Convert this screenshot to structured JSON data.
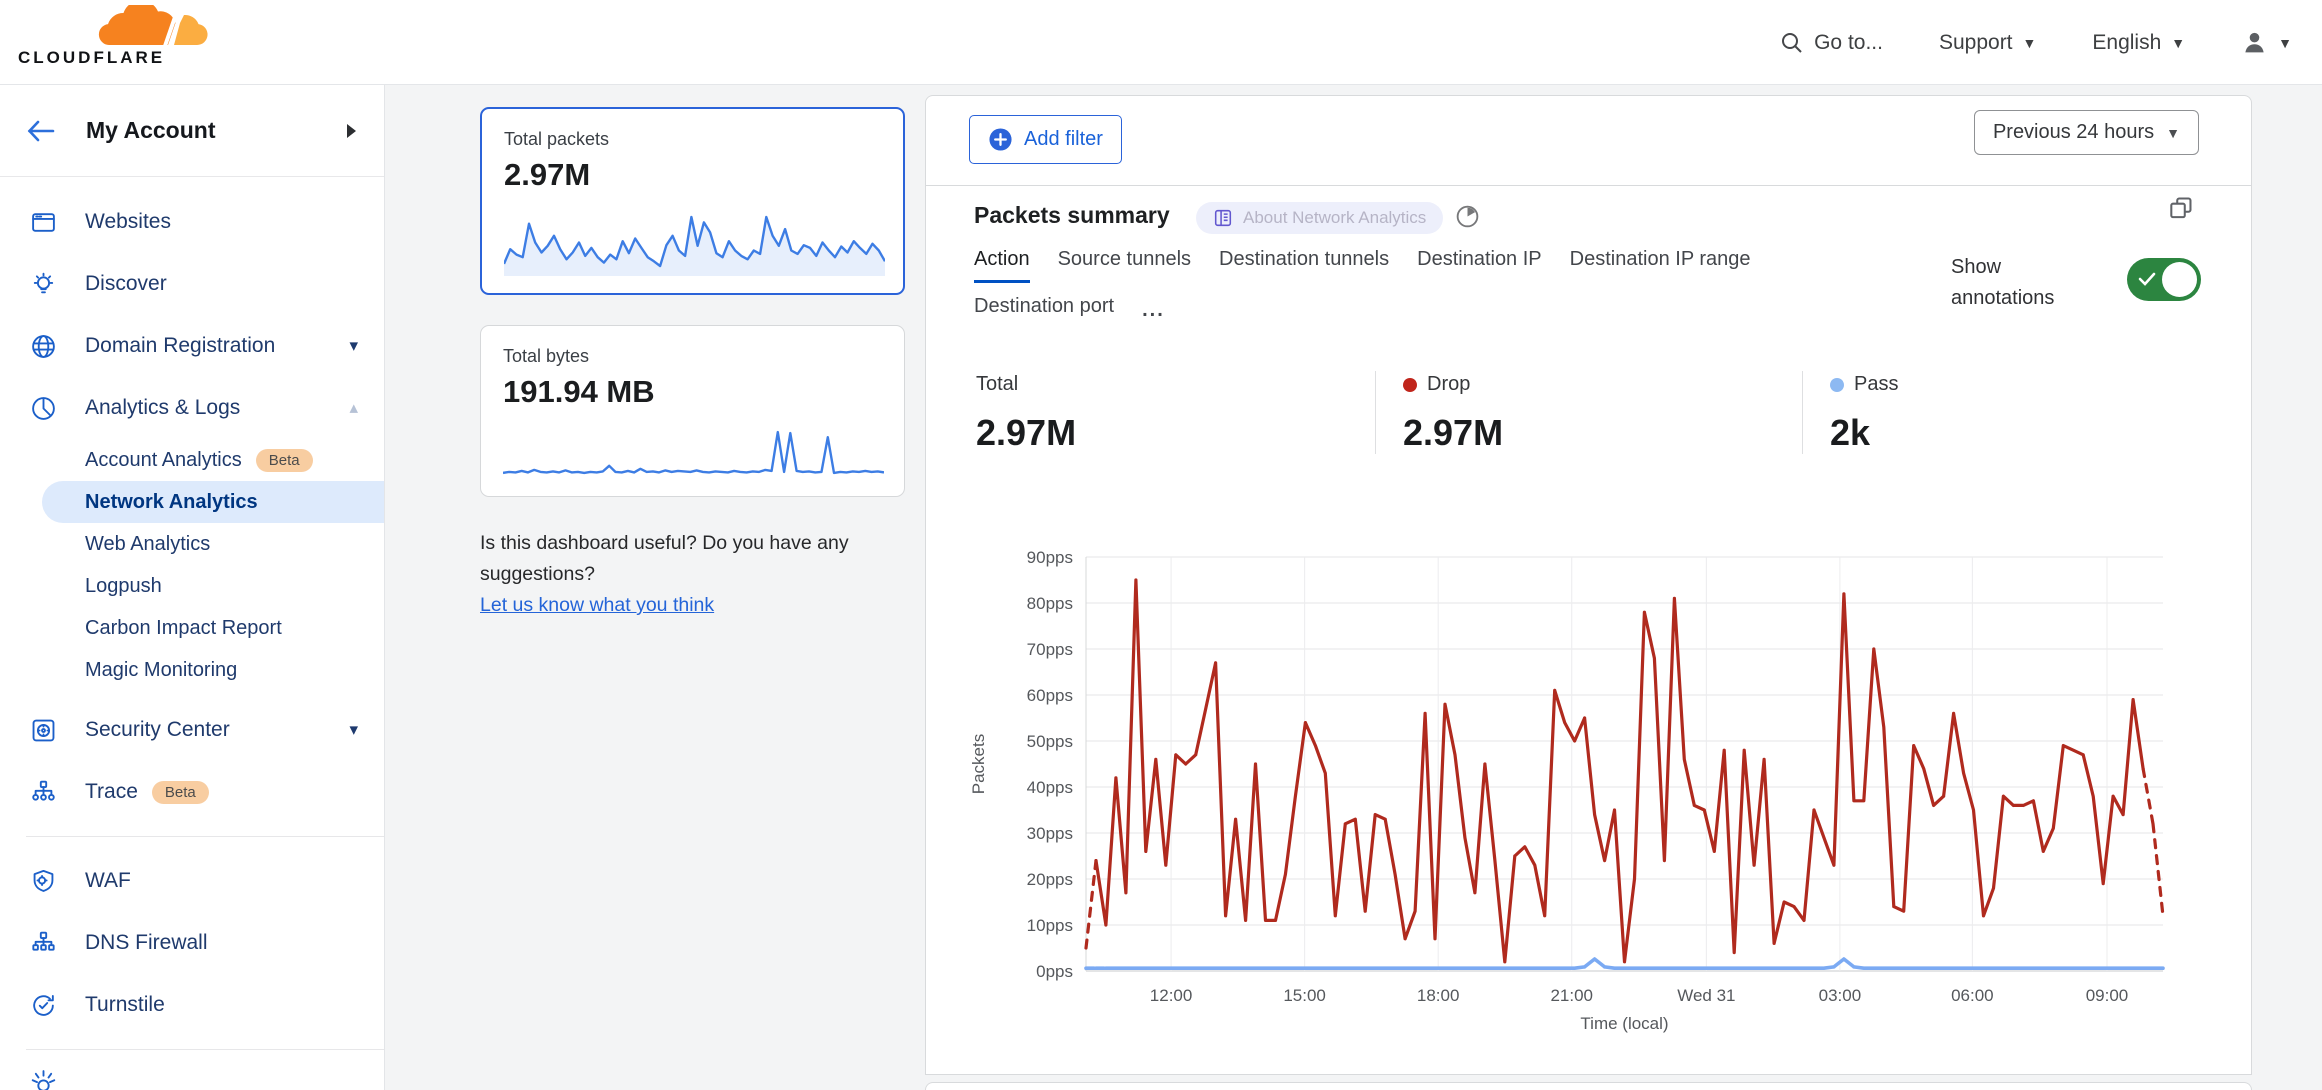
{
  "header": {
    "logo_text": "CLOUDFLARE",
    "goto": "Go to...",
    "support": "Support",
    "language": "English"
  },
  "sidebar": {
    "account_label": "My Account",
    "items": [
      {
        "icon": "websites-icon",
        "label": "Websites"
      },
      {
        "icon": "discover-icon",
        "label": "Discover"
      },
      {
        "icon": "globe-icon",
        "label": "Domain Registration",
        "caret": "down"
      },
      {
        "icon": "analytics-icon",
        "label": "Analytics & Logs",
        "caret": "up"
      },
      {
        "label": "Account Analytics",
        "badge": "Beta",
        "indent": true
      },
      {
        "label": "Network Analytics",
        "indent": true,
        "selected": true
      },
      {
        "label": "Web Analytics",
        "indent": true
      },
      {
        "label": "Logpush",
        "indent": true
      },
      {
        "label": "Carbon Impact Report",
        "indent": true
      },
      {
        "label": "Magic Monitoring",
        "indent": true
      },
      {
        "icon": "security-center-icon",
        "label": "Security Center",
        "caret": "down",
        "gap_before": true
      },
      {
        "icon": "trace-icon",
        "label": "Trace",
        "badge": "Beta"
      },
      {
        "divider": true
      },
      {
        "icon": "waf-icon",
        "label": "WAF"
      },
      {
        "icon": "dns-firewall-icon",
        "label": "DNS Firewall"
      },
      {
        "icon": "turnstile-icon",
        "label": "Turnstile"
      },
      {
        "divider": true
      },
      {
        "icon": "sun-icon",
        "label": "",
        "partial": true
      }
    ]
  },
  "summary_cards": [
    {
      "title": "Total packets",
      "value": "2.97M",
      "selected": true,
      "spark": [
        18,
        40,
        32,
        28,
        78,
        50,
        35,
        45,
        60,
        40,
        25,
        35,
        50,
        30,
        42,
        28,
        20,
        32,
        25,
        52,
        34,
        56,
        42,
        28,
        22,
        15,
        46,
        60,
        38,
        30,
        88,
        45,
        80,
        65,
        34,
        28,
        52,
        38,
        30,
        25,
        38,
        33,
        88,
        60,
        45,
        70,
        38,
        33,
        46,
        42,
        30,
        50,
        38,
        28,
        44,
        35,
        52,
        42,
        33,
        48,
        38,
        22
      ]
    },
    {
      "title": "Total bytes",
      "value": "191.94 MB",
      "selected": false,
      "spark": [
        8,
        10,
        9,
        12,
        9,
        14,
        10,
        9,
        11,
        9,
        13,
        9,
        10,
        8,
        10,
        9,
        11,
        22,
        10,
        9,
        12,
        9,
        16,
        10,
        11,
        9,
        13,
        10,
        12,
        11,
        10,
        13,
        10,
        9,
        11,
        10,
        9,
        12,
        10,
        9,
        11,
        10,
        14,
        12,
        88,
        10,
        86,
        12,
        10,
        11,
        9,
        10,
        78,
        8,
        10,
        9,
        11,
        10,
        12,
        10,
        11,
        9
      ]
    }
  ],
  "feedback": {
    "question": "Is this dashboard useful? Do you have any suggestions?",
    "link": "Let us know what you think"
  },
  "toolbar": {
    "add_filter": "Add filter",
    "time_range": "Previous 24 hours"
  },
  "panel": {
    "title": "Packets summary",
    "badge": "About Network Analytics",
    "tabs": [
      {
        "label": "Action",
        "active": true
      },
      {
        "label": "Source tunnels"
      },
      {
        "label": "Destination tunnels"
      },
      {
        "label": "Destination IP"
      },
      {
        "label": "Destination IP range"
      },
      {
        "label": "Destination port"
      },
      {
        "label": "...",
        "more": true
      }
    ],
    "annotations_label": "Show annotations",
    "annotations_on": true,
    "stats": [
      {
        "label": "Total",
        "value": "2.97M"
      },
      {
        "label": "Drop",
        "value": "2.97M",
        "dot": "#c0251b"
      },
      {
        "label": "Pass",
        "value": "2k",
        "dot": "#8db9f2"
      }
    ]
  },
  "chart_data": {
    "type": "line",
    "title": "Packets summary",
    "xlabel": "Time (local)",
    "ylabel": "Packets",
    "ylim": [
      0,
      90
    ],
    "grid": true,
    "legend_position": "stats-row-above",
    "y_ticks": [
      "0pps",
      "10pps",
      "20pps",
      "30pps",
      "40pps",
      "50pps",
      "60pps",
      "70pps",
      "80pps",
      "90pps"
    ],
    "x_ticks": [
      {
        "label": "12:00",
        "pos": 0.079
      },
      {
        "label": "15:00",
        "pos": 0.203
      },
      {
        "label": "18:00",
        "pos": 0.327
      },
      {
        "label": "21:00",
        "pos": 0.451
      },
      {
        "label": "Wed 31",
        "pos": 0.576
      },
      {
        "label": "03:00",
        "pos": 0.7
      },
      {
        "label": "06:00",
        "pos": 0.823
      },
      {
        "label": "09:00",
        "pos": 0.948
      }
    ],
    "series": [
      {
        "name": "Drop",
        "color": "#b02a1e",
        "width": 3.2,
        "dashed_head": 1,
        "dashed_tail": 2,
        "values": [
          5,
          24,
          10,
          42,
          17,
          85,
          26,
          46,
          23,
          47,
          45,
          47,
          57,
          67,
          12,
          33,
          11,
          45,
          11,
          11,
          21,
          38,
          54,
          49,
          43,
          12,
          32,
          33,
          13,
          34,
          33,
          21,
          7,
          13,
          56,
          7,
          58,
          47,
          29,
          17,
          45,
          24,
          2,
          25,
          27,
          23,
          12,
          61,
          54,
          50,
          55,
          34,
          24,
          35,
          2,
          20,
          78,
          68,
          24,
          81,
          46,
          36,
          35,
          26,
          48,
          4,
          48,
          23,
          46,
          6,
          15,
          14,
          11,
          35,
          29,
          23,
          82,
          37,
          37,
          70,
          53,
          14,
          13,
          49,
          44,
          36,
          38,
          56,
          43,
          35,
          12,
          18,
          38,
          36,
          36,
          37,
          26,
          31,
          49,
          48,
          47,
          38,
          19,
          38,
          34,
          59,
          44,
          32,
          12
        ]
      },
      {
        "name": "Pass",
        "color": "#7baaf3",
        "width": 3.6,
        "dashed_head": 2,
        "dashed_tail": 0,
        "values": [
          0.6,
          0.6,
          0.6,
          0.6,
          0.6,
          0.6,
          0.6,
          0.6,
          0.6,
          0.6,
          0.6,
          0.6,
          0.6,
          0.6,
          0.6,
          0.6,
          0.6,
          0.6,
          0.6,
          0.6,
          0.6,
          0.6,
          0.6,
          0.6,
          0.6,
          0.6,
          0.6,
          0.6,
          0.6,
          0.6,
          0.6,
          0.6,
          0.6,
          0.6,
          0.6,
          0.6,
          0.6,
          0.6,
          0.6,
          0.6,
          0.6,
          0.6,
          0.6,
          0.6,
          0.6,
          0.6,
          0.6,
          0.6,
          0.6,
          0.6,
          0.9,
          2.6,
          0.9,
          0.6,
          0.6,
          0.6,
          0.6,
          0.6,
          0.6,
          0.6,
          0.6,
          0.6,
          0.6,
          0.6,
          0.6,
          0.6,
          0.6,
          0.6,
          0.6,
          0.6,
          0.6,
          0.6,
          0.6,
          0.6,
          0.6,
          0.9,
          2.6,
          0.9,
          0.6,
          0.6,
          0.6,
          0.6,
          0.6,
          0.6,
          0.6,
          0.6,
          0.6,
          0.6,
          0.6,
          0.6,
          0.6,
          0.6,
          0.6,
          0.6,
          0.6,
          0.6,
          0.6,
          0.6,
          0.6,
          0.6,
          0.6,
          0.6,
          0.6,
          0.6,
          0.6,
          0.6,
          0.6,
          0.6,
          0.6
        ]
      }
    ]
  },
  "colors": {
    "accent_blue": "#2b63d9",
    "link_blue": "#2464d8",
    "drop_red": "#b02a1e",
    "pass_blue": "#7baaf3",
    "toggle_green": "#2c8540",
    "beta_badge_bg": "#f8cda1",
    "selected_nav_bg": "#ddeafc",
    "sidebar_icon_blue": "#1b5fc9",
    "spark_blue": "#3d7de4"
  }
}
